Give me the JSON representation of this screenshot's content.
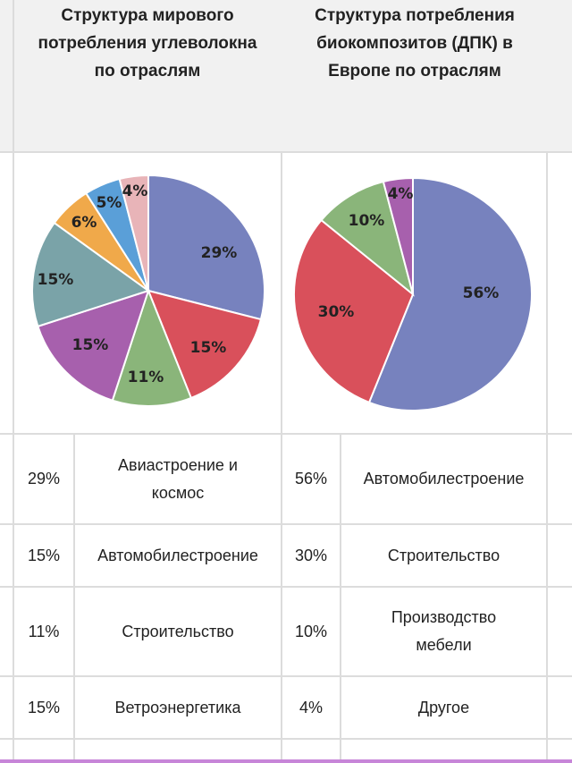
{
  "headers": {
    "left": "Структура мирового\nпотребления углеволокна\nпо отраслям",
    "right": "Структура потребления\nбиокомпозитов (ДПК) в\nЕвропе по отраслям"
  },
  "chart_data": [
    {
      "type": "pie",
      "title": "",
      "slices": [
        {
          "value": 29,
          "label": "29%",
          "color": "#7782be"
        },
        {
          "value": 15,
          "label": "15%",
          "color": "#d9505b"
        },
        {
          "value": 11,
          "label": "11%",
          "color": "#8ab57a"
        },
        {
          "value": 15,
          "label": "15%",
          "color": "#a760ad"
        },
        {
          "value": 15,
          "label": "15%",
          "color": "#7aa3a8"
        },
        {
          "value": 6,
          "label": "6%",
          "color": "#f0a94a"
        },
        {
          "value": 5,
          "label": "5%",
          "color": "#5a9fd8"
        },
        {
          "value": 4,
          "label": "4%",
          "color": "#e8b4b8"
        }
      ]
    },
    {
      "type": "pie",
      "title": "",
      "slices": [
        {
          "value": 56,
          "label": "56%",
          "color": "#7782be"
        },
        {
          "value": 30,
          "label": "30%",
          "color": "#d9505b"
        },
        {
          "value": 10,
          "label": "10%",
          "color": "#8ab57a"
        },
        {
          "value": 4,
          "label": "4%",
          "color": "#a760ad"
        }
      ]
    }
  ],
  "rows": [
    {
      "lp": "29%",
      "ln": "Авиастроение и\nкосмос",
      "rp": "56%",
      "rn": "Автомобилестроение"
    },
    {
      "lp": "15%",
      "ln": "Автомобилестроение",
      "rp": "30%",
      "rn": "Строительство"
    },
    {
      "lp": "11%",
      "ln": "Строительство",
      "rp": "10%",
      "rn": "Производство\nмебели"
    },
    {
      "lp": "15%",
      "ln": "Ветроэнергетика",
      "rp": "4%",
      "rn": "Другое"
    },
    {
      "lp": "",
      "ln": "",
      "rp": "",
      "rn": ""
    }
  ]
}
